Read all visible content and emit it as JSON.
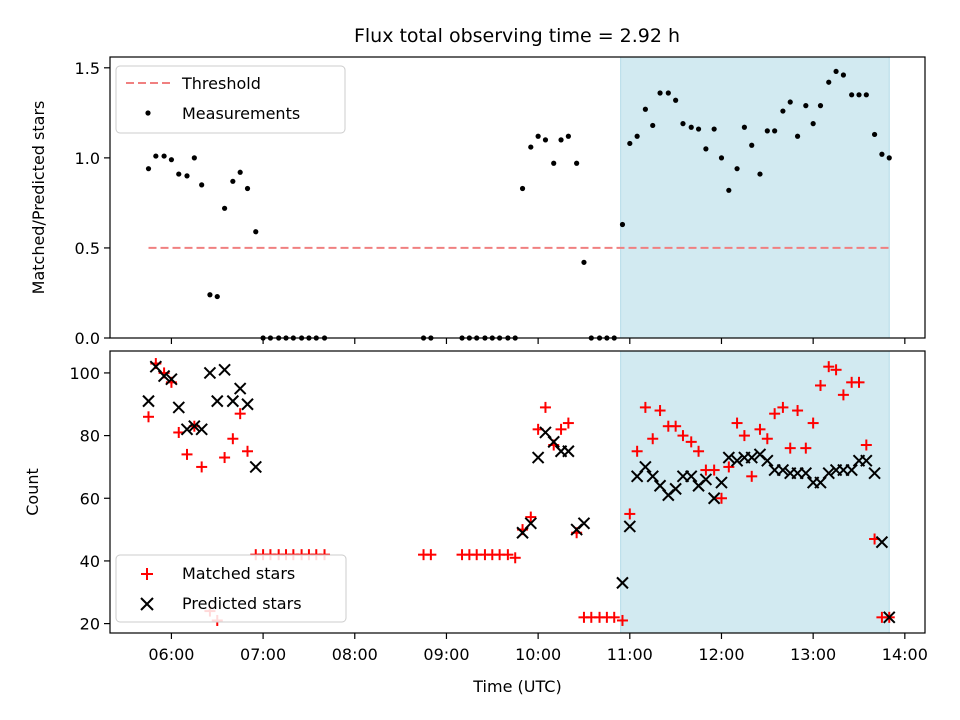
{
  "chart_data": {
    "type": "scatter",
    "title": "Flux total observing time = 2.92 h",
    "xlabel": "Time (UTC)",
    "xlim": [
      5.33,
      14.22
    ],
    "x_ticks": [
      {
        "value": 6,
        "label": "06:00"
      },
      {
        "value": 7,
        "label": "07:00"
      },
      {
        "value": 8,
        "label": "08:00"
      },
      {
        "value": 9,
        "label": "09:00"
      },
      {
        "value": 10,
        "label": "10:00"
      },
      {
        "value": 11,
        "label": "11:00"
      },
      {
        "value": 12,
        "label": "12:00"
      },
      {
        "value": 13,
        "label": "13:00"
      },
      {
        "value": 14,
        "label": "14:00"
      }
    ],
    "shaded_interval": {
      "x": [
        10.9,
        13.83
      ],
      "color": "#add8e6"
    },
    "top": {
      "ylabel": "Matched/Predicted stars",
      "ylim": [
        0,
        1.56
      ],
      "y_ticks": [
        {
          "value": 0,
          "label": "0.0"
        },
        {
          "value": 0.5,
          "label": "0.5"
        },
        {
          "value": 1.0,
          "label": "1.0"
        },
        {
          "value": 1.5,
          "label": "1.5"
        }
      ],
      "threshold": {
        "name": "Threshold",
        "value": 0.5,
        "x": [
          5.75,
          13.83
        ],
        "color": "#f08080"
      },
      "series": [
        {
          "name": "Measurements",
          "color": "#000000",
          "x": [
            5.75,
            5.83,
            5.92,
            6.0,
            6.08,
            6.17,
            6.25,
            6.33,
            6.42,
            6.5,
            6.58,
            6.67,
            6.75,
            6.83,
            6.92,
            7.0,
            7.08,
            7.17,
            7.25,
            7.33,
            7.42,
            7.5,
            7.58,
            7.67,
            8.75,
            8.83,
            9.17,
            9.25,
            9.33,
            9.42,
            9.5,
            9.58,
            9.67,
            9.75,
            9.83,
            9.92,
            10.0,
            10.08,
            10.17,
            10.25,
            10.33,
            10.42,
            10.5,
            10.58,
            10.67,
            10.75,
            10.83,
            10.92,
            11.0,
            11.08,
            11.17,
            11.25,
            11.33,
            11.42,
            11.5,
            11.58,
            11.67,
            11.75,
            11.83,
            11.92,
            12.0,
            12.08,
            12.17,
            12.25,
            12.33,
            12.42,
            12.5,
            12.58,
            12.67,
            12.75,
            12.83,
            12.92,
            13.0,
            13.08,
            13.17,
            13.25,
            13.33,
            13.42,
            13.5,
            13.58,
            13.67,
            13.75,
            13.83
          ],
          "y": [
            0.94,
            1.01,
            1.01,
            0.99,
            0.91,
            0.9,
            1.0,
            0.85,
            0.24,
            0.23,
            0.72,
            0.87,
            0.92,
            0.83,
            0.59,
            0,
            0,
            0,
            0,
            0,
            0,
            0,
            0,
            0,
            0,
            0,
            0,
            0,
            0,
            0,
            0,
            0,
            0,
            0,
            0.83,
            1.06,
            1.12,
            1.1,
            0.97,
            1.1,
            1.12,
            0.97,
            0.42,
            0,
            0,
            0,
            0,
            0.63,
            1.08,
            1.12,
            1.27,
            1.18,
            1.36,
            1.36,
            1.32,
            1.19,
            1.17,
            1.16,
            1.05,
            1.16,
            1.0,
            0.82,
            0.94,
            1.17,
            1.07,
            0.91,
            1.15,
            1.15,
            1.26,
            1.31,
            1.12,
            1.29,
            1.19,
            1.29,
            1.42,
            1.48,
            1.46,
            1.35,
            1.35,
            1.35,
            1.13,
            1.02,
            1.0
          ]
        }
      ]
    },
    "bottom": {
      "ylabel": "Count",
      "ylim": [
        17,
        107
      ],
      "y_ticks": [
        {
          "value": 20,
          "label": "20"
        },
        {
          "value": 40,
          "label": "40"
        },
        {
          "value": 60,
          "label": "60"
        },
        {
          "value": 80,
          "label": "80"
        },
        {
          "value": 100,
          "label": "100"
        }
      ],
      "series": [
        {
          "name": "Matched stars",
          "color": "#ff0000",
          "marker": "+",
          "x": [
            5.75,
            5.83,
            5.92,
            6.0,
            6.08,
            6.17,
            6.25,
            6.33,
            6.42,
            6.5,
            6.58,
            6.67,
            6.75,
            6.83,
            6.92,
            7.0,
            7.08,
            7.17,
            7.25,
            7.33,
            7.42,
            7.5,
            7.58,
            7.67,
            8.75,
            8.83,
            9.17,
            9.25,
            9.33,
            9.42,
            9.5,
            9.58,
            9.67,
            9.75,
            9.83,
            9.92,
            10.0,
            10.08,
            10.17,
            10.25,
            10.33,
            10.42,
            10.5,
            10.58,
            10.67,
            10.75,
            10.83,
            10.92,
            11.0,
            11.08,
            11.17,
            11.25,
            11.33,
            11.42,
            11.5,
            11.58,
            11.67,
            11.75,
            11.83,
            11.92,
            12.0,
            12.08,
            12.17,
            12.25,
            12.33,
            12.42,
            12.5,
            12.58,
            12.67,
            12.75,
            12.83,
            12.92,
            13.0,
            13.08,
            13.17,
            13.25,
            13.33,
            13.42,
            13.5,
            13.58,
            13.67,
            13.75,
            13.83
          ],
          "y": [
            86,
            103,
            100,
            97,
            81,
            74,
            83,
            70,
            24,
            21,
            73,
            79,
            87,
            75,
            42,
            42,
            42,
            42,
            42,
            42,
            42,
            42,
            42,
            42,
            42,
            42,
            42,
            42,
            42,
            42,
            42,
            42,
            42,
            41,
            50,
            54,
            82,
            89,
            77,
            82,
            84,
            49,
            22,
            22,
            22,
            22,
            22,
            21,
            55,
            75,
            89,
            79,
            88,
            83,
            83,
            80,
            78,
            75,
            69,
            69,
            60,
            70,
            84,
            80,
            67,
            82,
            79,
            87,
            89,
            76,
            88,
            76,
            84,
            96,
            102,
            101,
            93,
            97,
            97,
            77,
            47,
            22,
            22
          ]
        },
        {
          "name": "Predicted stars",
          "color": "#000000",
          "marker": "x",
          "x": [
            5.75,
            5.83,
            5.92,
            6.0,
            6.08,
            6.17,
            6.25,
            6.33,
            6.42,
            6.5,
            6.58,
            6.67,
            6.75,
            6.83,
            6.92,
            9.83,
            9.92,
            10.0,
            10.08,
            10.17,
            10.25,
            10.33,
            10.42,
            10.5,
            10.92,
            11.0,
            11.08,
            11.17,
            11.25,
            11.33,
            11.42,
            11.5,
            11.58,
            11.67,
            11.75,
            11.83,
            11.92,
            12.0,
            12.08,
            12.17,
            12.25,
            12.33,
            12.42,
            12.5,
            12.58,
            12.67,
            12.75,
            12.83,
            12.92,
            13.0,
            13.08,
            13.17,
            13.25,
            13.33,
            13.42,
            13.5,
            13.58,
            13.67,
            13.75,
            13.83
          ],
          "y": [
            91,
            102,
            99,
            98,
            89,
            82,
            83,
            82,
            100,
            91,
            101,
            91,
            95,
            90,
            70,
            49,
            52,
            73,
            81,
            78,
            75,
            75,
            50,
            52,
            33,
            51,
            67,
            70,
            67,
            64,
            61,
            63,
            67,
            67,
            64,
            66,
            60,
            65,
            73,
            72,
            73,
            73,
            74,
            72,
            69,
            69,
            68,
            68,
            68,
            65,
            65,
            68,
            69,
            69,
            69,
            72,
            72,
            68,
            46,
            22
          ]
        }
      ]
    }
  }
}
